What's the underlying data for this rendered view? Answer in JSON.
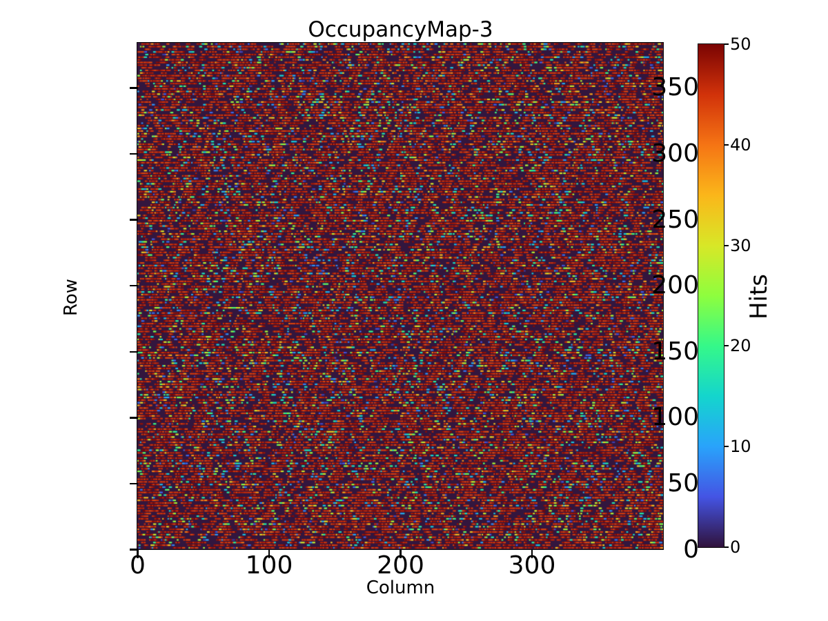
{
  "figure": {
    "title": "OccupancyMap-3"
  },
  "axes": {
    "xlabel": "Column",
    "ylabel": "Row",
    "x_ticks": [
      0,
      100,
      200,
      300
    ],
    "y_ticks": [
      0,
      50,
      100,
      150,
      200,
      250,
      300,
      350
    ],
    "xlim": [
      0,
      400
    ],
    "ylim": [
      0,
      384
    ]
  },
  "colorbar": {
    "label": "Hits",
    "ticks": [
      0,
      10,
      20,
      30,
      40,
      50
    ],
    "zlim": [
      0,
      50
    ]
  },
  "chart_data": {
    "type": "heatmap",
    "title": "OccupancyMap-3",
    "xlabel": "Column",
    "ylabel": "Row",
    "colorbar_label": "Hits",
    "xlim": [
      0,
      400
    ],
    "ylim": [
      0,
      384
    ],
    "zlim": [
      0,
      50
    ],
    "cols": 400,
    "rows": 384,
    "grid": false,
    "legend": "none (colorbar on right)",
    "colormap": "turbo",
    "background_color": "#33163e",
    "colormap_stops": [
      [
        0.0,
        "#30123b"
      ],
      [
        0.1,
        "#4454e4"
      ],
      [
        0.2,
        "#29a3fb"
      ],
      [
        0.3,
        "#14d5cd"
      ],
      [
        0.4,
        "#35f889"
      ],
      [
        0.5,
        "#8efe3e"
      ],
      [
        0.6,
        "#d8e727"
      ],
      [
        0.7,
        "#fbb61a"
      ],
      [
        0.8,
        "#f57414"
      ],
      [
        0.9,
        "#d1320a"
      ],
      [
        1.0,
        "#7a0403"
      ]
    ],
    "description": "Sparse random pixel-hit occupancy map. Hits appear as short horizontal dashes on alternating rows (every 2nd row occupied), mostly saturated dark-red values near the 50-hit maximum, with scattered lower-value dots (blue, cyan, green, yellow, orange). Cells between hits are at 0 (dark purple background).",
    "pattern": {
      "active_row_step": 2,
      "fill_fraction": 0.6,
      "p_gap": 0.4,
      "p_high": 0.4,
      "p_mid": 0.2,
      "high_value_range": [
        43,
        50
      ],
      "mid_value_range": [
        3,
        42
      ],
      "gap_run_cells": [
        1,
        3
      ],
      "high_run_cells": [
        1,
        5
      ],
      "mid_run_cells": [
        1,
        2
      ],
      "seed": 1337
    }
  }
}
